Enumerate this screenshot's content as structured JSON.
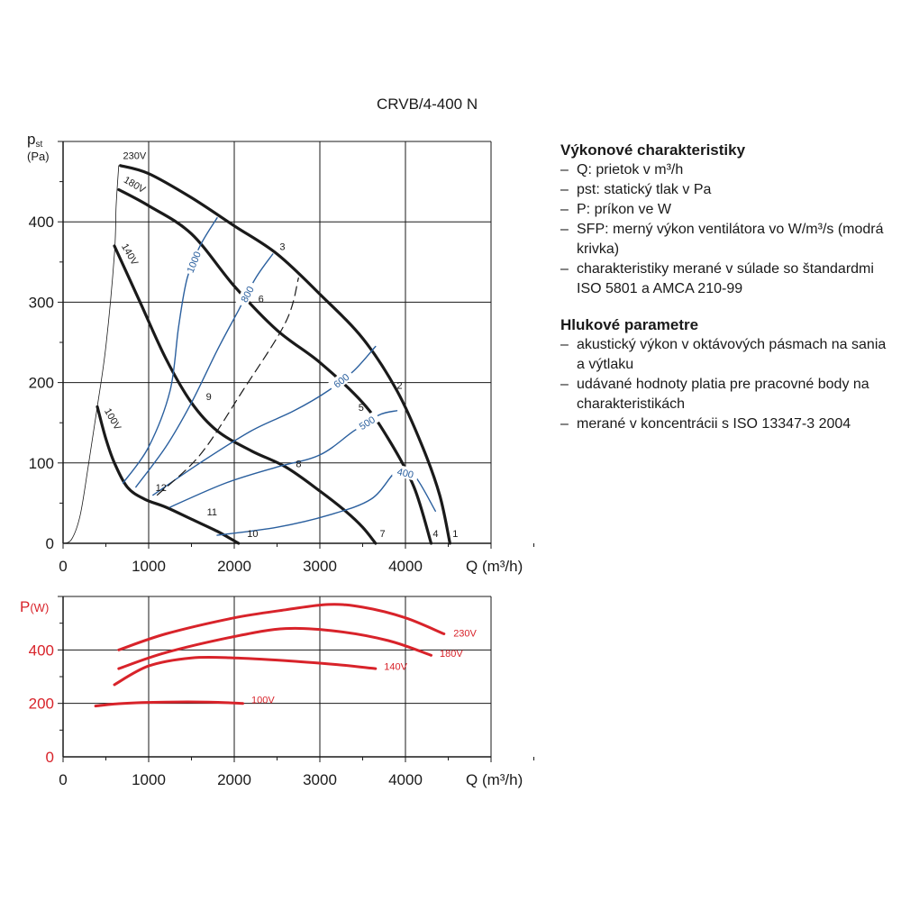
{
  "title": "CRVB/4-400 N",
  "colors": {
    "black": "#1a1a1a",
    "blue": "#2a5f9e",
    "red": "#d8232a",
    "grid": "#1a1a1a"
  },
  "legend": {
    "sections": [
      {
        "heading": "Výkonové charakteristiky",
        "items": [
          "Q: prietok v m³/h",
          "pst: statický tlak v Pa",
          "P: príkon ve W",
          "SFP: merný výkon ventilátora vo W/m³/s (modrá krivka)",
          "charakteristiky merané v súlade so štandardmi ISO 5801 a AMCA 210-99"
        ]
      },
      {
        "heading": "Hlukové parametre",
        "items": [
          "akustický výkon v oktávových pásmach na sania a výtlaku",
          "udávané hodnoty platia pre pracovné body na charakteristikách",
          "merané v koncentrácii s ISO 13347-3 2004"
        ]
      }
    ]
  },
  "chart_data": [
    {
      "type": "line",
      "name": "pressure",
      "xlabel": "Q (m³/h)",
      "ylabel": "pst (Pa)",
      "xlim": [
        0,
        5000
      ],
      "ylim": [
        0,
        500
      ],
      "x_ticks": [
        0,
        1000,
        2000,
        3000,
        4000
      ],
      "y_ticks": [
        0,
        100,
        200,
        300,
        400
      ],
      "grid": true,
      "series": [
        {
          "name": "230V",
          "color": "black",
          "points": [
            [
              670,
              470
            ],
            [
              1000,
              460
            ],
            [
              1500,
              430
            ],
            [
              2000,
              395
            ],
            [
              2500,
              360
            ],
            [
              3000,
              310
            ],
            [
              3500,
              255
            ],
            [
              3900,
              190
            ],
            [
              4200,
              120
            ],
            [
              4400,
              60
            ],
            [
              4520,
              0
            ]
          ]
        },
        {
          "name": "180V",
          "color": "black",
          "points": [
            [
              650,
              440
            ],
            [
              1000,
              420
            ],
            [
              1500,
              385
            ],
            [
              2000,
              320
            ],
            [
              2500,
              265
            ],
            [
              3000,
              225
            ],
            [
              3500,
              175
            ],
            [
              3800,
              130
            ],
            [
              4100,
              70
            ],
            [
              4300,
              0
            ]
          ]
        },
        {
          "name": "140V",
          "color": "black",
          "points": [
            [
              600,
              370
            ],
            [
              900,
              300
            ],
            [
              1200,
              230
            ],
            [
              1500,
              175
            ],
            [
              1800,
              140
            ],
            [
              2200,
              115
            ],
            [
              2600,
              95
            ],
            [
              3000,
              65
            ],
            [
              3300,
              40
            ],
            [
              3500,
              20
            ],
            [
              3650,
              0
            ]
          ]
        },
        {
          "name": "100V",
          "color": "black",
          "points": [
            [
              400,
              170
            ],
            [
              500,
              130
            ],
            [
              600,
              100
            ],
            [
              750,
              70
            ],
            [
              950,
              55
            ],
            [
              1200,
              45
            ],
            [
              1500,
              30
            ],
            [
              1800,
              15
            ],
            [
              2050,
              0
            ]
          ]
        },
        {
          "name": "",
          "color": "blue",
          "label": "1000",
          "points": [
            [
              700,
              75
            ],
            [
              1000,
              120
            ],
            [
              1250,
              190
            ],
            [
              1350,
              270
            ],
            [
              1450,
              330
            ],
            [
              1600,
              370
            ],
            [
              1800,
              405
            ]
          ]
        },
        {
          "name": "",
          "color": "blue",
          "label": "800",
          "points": [
            [
              850,
              70
            ],
            [
              1200,
              120
            ],
            [
              1500,
              175
            ],
            [
              1800,
              240
            ],
            [
              2050,
              290
            ],
            [
              2250,
              330
            ],
            [
              2450,
              360
            ]
          ]
        },
        {
          "name": "",
          "color": "blue",
          "label": "600",
          "points": [
            [
              1050,
              60
            ],
            [
              1600,
              100
            ],
            [
              2200,
              140
            ],
            [
              2700,
              165
            ],
            [
              3100,
              190
            ],
            [
              3400,
              215
            ],
            [
              3650,
              245
            ]
          ]
        },
        {
          "name": "",
          "color": "blue",
          "label": "500",
          "points": [
            [
              1250,
              45
            ],
            [
              1900,
              75
            ],
            [
              2500,
              95
            ],
            [
              3000,
              110
            ],
            [
              3400,
              140
            ],
            [
              3700,
              160
            ],
            [
              3900,
              165
            ]
          ]
        },
        {
          "name": "",
          "color": "blue",
          "label": "400",
          "points": [
            [
              1800,
              10
            ],
            [
              2500,
              20
            ],
            [
              3100,
              35
            ],
            [
              3600,
              55
            ],
            [
              3900,
              90
            ],
            [
              4100,
              85
            ],
            [
              4350,
              40
            ]
          ]
        },
        {
          "name": "",
          "color": "black",
          "dash": true,
          "points": [
            [
              1100,
              60
            ],
            [
              1600,
              110
            ],
            [
              2100,
              190
            ],
            [
              2600,
              275
            ],
            [
              2750,
              330
            ]
          ]
        },
        {
          "name": "",
          "color": "black",
          "thin": true,
          "points": [
            [
              0,
              0
            ],
            [
              100,
              5
            ],
            [
              200,
              35
            ],
            [
              300,
              100
            ],
            [
              400,
              170
            ],
            [
              500,
              245
            ],
            [
              600,
              360
            ],
            [
              620,
              420
            ],
            [
              650,
              470
            ]
          ]
        }
      ],
      "curve_labels": [
        {
          "text": "230V",
          "x": 700,
          "y": 478
        },
        {
          "text": "180V",
          "x": 700,
          "y": 450
        },
        {
          "text": "140V",
          "x": 680,
          "y": 370
        },
        {
          "text": "100V",
          "x": 480,
          "y": 165
        }
      ],
      "point_labels": [
        {
          "text": "1",
          "x": 4550,
          "y": 8
        },
        {
          "text": "2",
          "x": 3900,
          "y": 192
        },
        {
          "text": "3",
          "x": 2530,
          "y": 365
        },
        {
          "text": "4",
          "x": 4320,
          "y": 8
        },
        {
          "text": "5",
          "x": 3450,
          "y": 165
        },
        {
          "text": "6",
          "x": 2280,
          "y": 300
        },
        {
          "text": "7",
          "x": 3700,
          "y": 8
        },
        {
          "text": "8",
          "x": 2720,
          "y": 95
        },
        {
          "text": "9",
          "x": 1670,
          "y": 178
        },
        {
          "text": "10",
          "x": 2150,
          "y": 8
        },
        {
          "text": "11",
          "x": 1680,
          "y": 35
        },
        {
          "text": "12",
          "x": 1080,
          "y": 65
        }
      ]
    },
    {
      "type": "line",
      "name": "power",
      "xlabel": "Q (m³/h)",
      "ylabel": "P(W)",
      "xlim": [
        0,
        5000
      ],
      "ylim": [
        0,
        600
      ],
      "x_ticks": [
        0,
        1000,
        2000,
        3000,
        4000
      ],
      "y_ticks": [
        0,
        200,
        400
      ],
      "grid": true,
      "series": [
        {
          "name": "230V",
          "color": "red",
          "points": [
            [
              650,
              400
            ],
            [
              1200,
              460
            ],
            [
              2000,
              520
            ],
            [
              2600,
              550
            ],
            [
              3100,
              570
            ],
            [
              3500,
              560
            ],
            [
              4000,
              520
            ],
            [
              4450,
              460
            ]
          ]
        },
        {
          "name": "180V",
          "color": "red",
          "points": [
            [
              650,
              330
            ],
            [
              1200,
              390
            ],
            [
              2000,
              450
            ],
            [
              2600,
              480
            ],
            [
              3200,
              470
            ],
            [
              3800,
              435
            ],
            [
              4300,
              380
            ]
          ]
        },
        {
          "name": "140V",
          "color": "red",
          "points": [
            [
              600,
              270
            ],
            [
              1000,
              340
            ],
            [
              1500,
              370
            ],
            [
              2000,
              370
            ],
            [
              2600,
              360
            ],
            [
              3200,
              345
            ],
            [
              3650,
              330
            ]
          ]
        },
        {
          "name": "100V",
          "color": "red",
          "points": [
            [
              380,
              190
            ],
            [
              700,
              200
            ],
            [
              1200,
              205
            ],
            [
              1700,
              205
            ],
            [
              2100,
              200
            ]
          ]
        }
      ],
      "curve_labels": [
        {
          "text": "230V",
          "x": 4560,
          "y": 450
        },
        {
          "text": "180V",
          "x": 4400,
          "y": 375
        },
        {
          "text": "140V",
          "x": 3750,
          "y": 325
        },
        {
          "text": "100V",
          "x": 2200,
          "y": 200
        }
      ]
    }
  ]
}
